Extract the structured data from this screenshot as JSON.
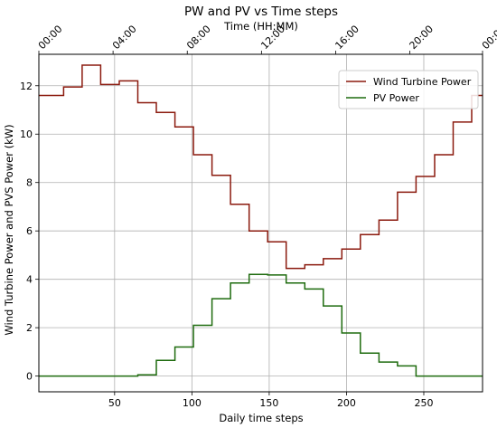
{
  "chart_data": {
    "type": "line",
    "title": "PW and PV vs Time steps",
    "xlabel": "Daily time steps",
    "ylabel": "Wind Turbine Power and PVS Power (kW)",
    "x2label": "Time (HH:MM)",
    "xlim": [
      1,
      288
    ],
    "ylim": [
      -0.65,
      13.3
    ],
    "xticks": [
      50,
      100,
      150,
      200,
      250
    ],
    "yticks": [
      0,
      2,
      4,
      6,
      8,
      10,
      12
    ],
    "top_ticks": [
      {
        "x": 1,
        "label": "00:00"
      },
      {
        "x": 49,
        "label": "04:00"
      },
      {
        "x": 97,
        "label": "08:00"
      },
      {
        "x": 145,
        "label": "12:00"
      },
      {
        "x": 193,
        "label": "16:00"
      },
      {
        "x": 241,
        "label": "20:00"
      },
      {
        "x": 288,
        "label": "00:00"
      }
    ],
    "grid": true,
    "legend_position": "upper right",
    "series": [
      {
        "name": "Wind Turbine Power",
        "color": "#8b1a0e",
        "step": true,
        "x": [
          1,
          17,
          29,
          41,
          53,
          65,
          77,
          89,
          101,
          113,
          125,
          137,
          149,
          161,
          173,
          185,
          197,
          209,
          221,
          233,
          245,
          257,
          269,
          281,
          288
        ],
        "y": [
          11.6,
          11.95,
          12.85,
          12.05,
          12.2,
          11.3,
          10.9,
          10.3,
          9.15,
          8.3,
          7.1,
          6.0,
          5.55,
          4.45,
          4.6,
          4.85,
          5.25,
          5.85,
          6.45,
          7.6,
          8.25,
          9.15,
          10.5,
          11.6,
          11.6
        ]
      },
      {
        "name": "PV Power",
        "color": "#1e6b0e",
        "step": true,
        "x": [
          1,
          65,
          77,
          89,
          101,
          113,
          125,
          137,
          149,
          161,
          173,
          185,
          197,
          209,
          221,
          233,
          245,
          257,
          269,
          281,
          288
        ],
        "y": [
          0.0,
          0.05,
          0.65,
          1.2,
          2.1,
          3.2,
          3.85,
          4.2,
          4.18,
          3.85,
          3.6,
          2.9,
          1.78,
          0.95,
          0.58,
          0.42,
          0.0,
          0.0,
          0.0,
          0.0,
          0.0
        ]
      }
    ]
  }
}
